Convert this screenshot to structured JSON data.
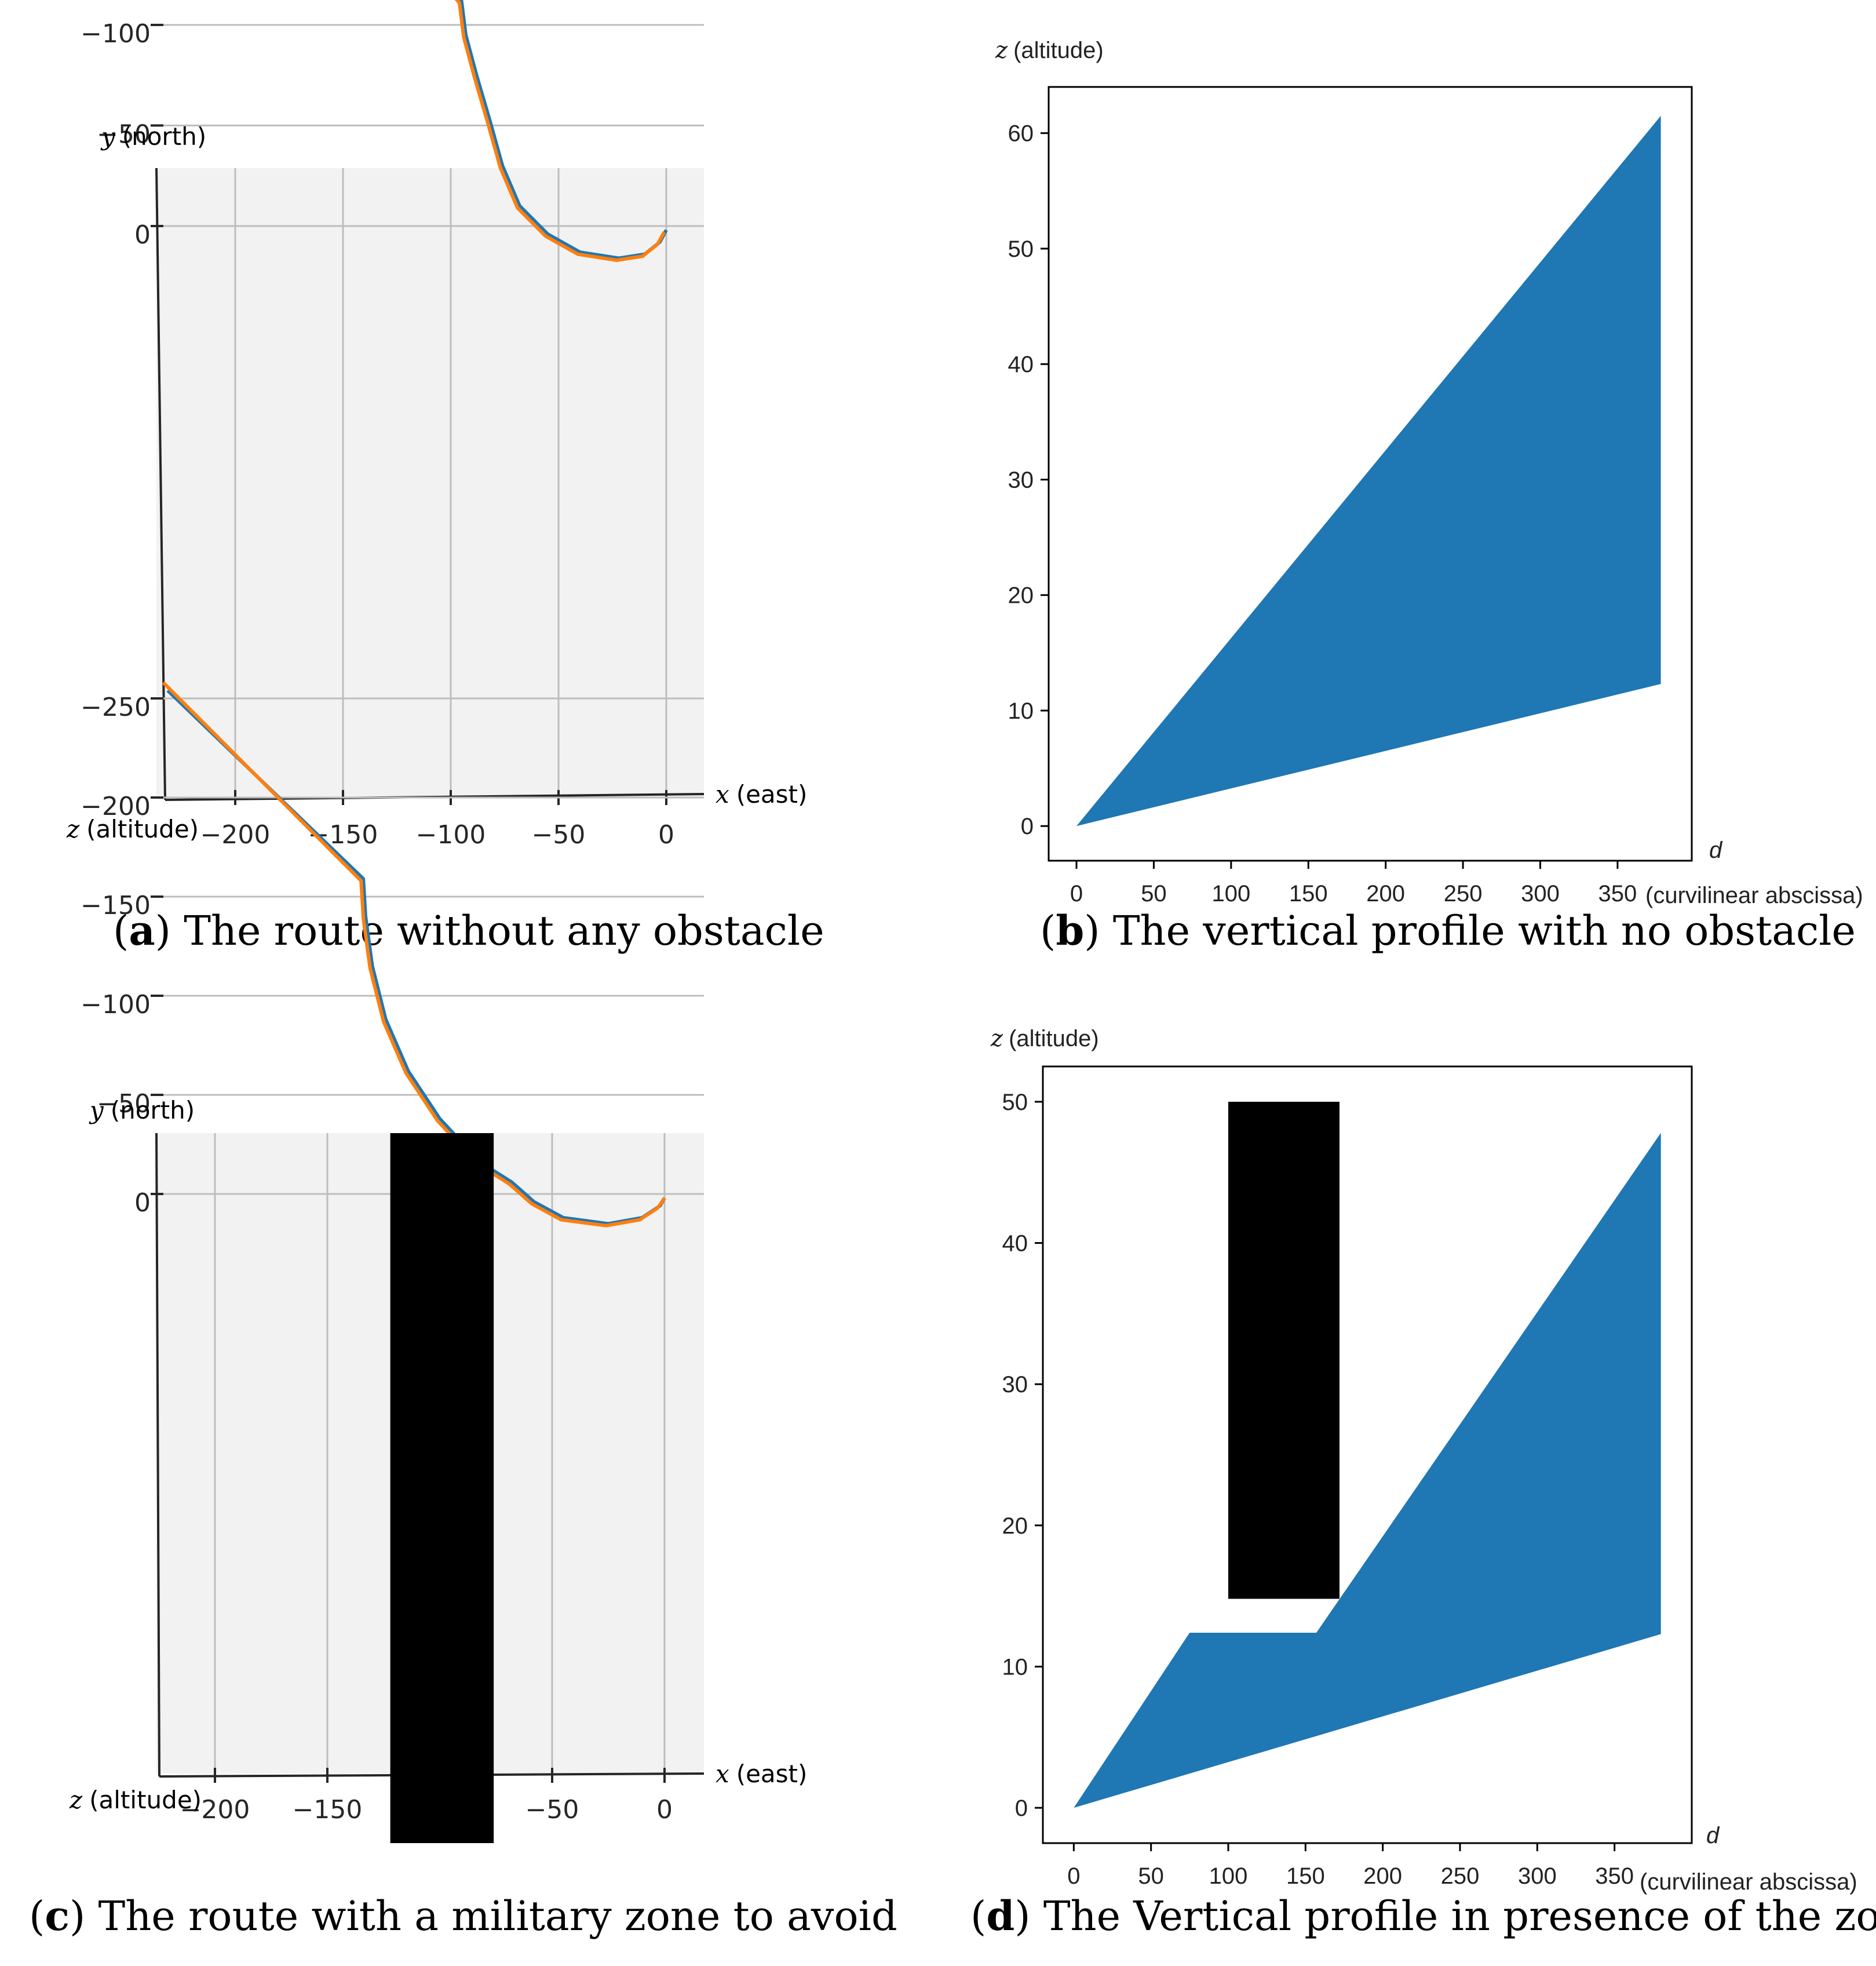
{
  "chart_data": [
    {
      "id": "a",
      "type": "line",
      "caption_letter": "a",
      "caption_text": "The route without any obstacle",
      "xlabel_var": "x",
      "xlabel_text": "(east)",
      "ylabel_var": "y",
      "ylabel_text": "(north)",
      "zlabel_var": "z",
      "zlabel_text": "(altitude)",
      "xticks": [
        "−200",
        "−150",
        "−100",
        "−50",
        "0"
      ],
      "yticks": [
        "0",
        "−50",
        "−100",
        "−150",
        "−200",
        "−250"
      ],
      "series": [
        {
          "name": "route-blue",
          "color": "#1f77b4",
          "points": [
            [
              -222,
              -263
            ],
            [
              -95,
              -112
            ],
            [
              -93,
              -95
            ],
            [
              -88,
              -75
            ],
            [
              -82,
              -53
            ],
            [
              -76,
              -30
            ],
            [
              -68,
              -10
            ],
            [
              -55,
              4
            ],
            [
              -40,
              13
            ],
            [
              -22,
              16
            ],
            [
              -10,
              14
            ],
            [
              -3,
              8
            ],
            [
              0,
              2
            ]
          ]
        },
        {
          "name": "route-orange",
          "color": "#ff7f0e",
          "points": [
            [
              -225,
              -266
            ],
            [
              -96,
              -111
            ],
            [
              -94,
              -94
            ],
            [
              -89,
              -74
            ],
            [
              -83,
              -52
            ],
            [
              -77,
              -29
            ],
            [
              -69,
              -9
            ],
            [
              -56,
              5
            ],
            [
              -41,
              14
            ],
            [
              -23,
              17
            ],
            [
              -11,
              15
            ],
            [
              -4,
              9
            ],
            [
              -1,
              3
            ]
          ]
        }
      ]
    },
    {
      "id": "b",
      "type": "area",
      "caption_letter": "b",
      "caption_text": "The vertical profile with no obstacle",
      "ylabel_var": "z",
      "ylabel_text": "(altitude)",
      "xlabel_var": "d",
      "xlabel_text": "(curvilinear abscissa)",
      "xticks": [
        0,
        50,
        100,
        150,
        200,
        250,
        300,
        350
      ],
      "yticks": [
        0,
        10,
        20,
        30,
        40,
        50,
        60
      ],
      "xlim": [
        -18,
        398
      ],
      "ylim": [
        -3,
        64
      ],
      "color": "#1f77b4",
      "polygon": [
        [
          0,
          0
        ],
        [
          378,
          61.5
        ],
        [
          378,
          12.3
        ],
        [
          0,
          0
        ]
      ]
    },
    {
      "id": "c",
      "type": "line",
      "caption_letter": "c",
      "caption_text": "The route with a military zone to avoid",
      "xlabel_var": "x",
      "xlabel_text": "(east)",
      "ylabel_var": "y",
      "ylabel_text": "(north)",
      "zlabel_var": "z",
      "zlabel_text": "(altitude)",
      "xticks": [
        "−200",
        "−150",
        "−100",
        "−50",
        "0"
      ],
      "yticks": [
        "0",
        "−50",
        "−100",
        "−150",
        "−200",
        "−250"
      ],
      "zone": {
        "x_from": -122,
        "x_to": -76,
        "color": "#000000"
      },
      "series": [
        {
          "name": "route-blue",
          "color": "#1f77b4",
          "points": [
            [
              -221,
              -254
            ],
            [
              -134,
              -159
            ],
            [
              -133,
              -140
            ],
            [
              -130,
              -115
            ],
            [
              -124,
              -88
            ],
            [
              -114,
              -62
            ],
            [
              -100,
              -38
            ],
            [
              -82,
              -16
            ],
            [
              -68,
              -6
            ],
            [
              -58,
              4
            ],
            [
              -45,
              12
            ],
            [
              -25,
              15
            ],
            [
              -10,
              12
            ],
            [
              -2,
              6
            ],
            [
              0,
              2
            ]
          ]
        },
        {
          "name": "route-orange",
          "color": "#ff7f0e",
          "points": [
            [
              -223,
              -258
            ],
            [
              -135,
              -158
            ],
            [
              -134,
              -139
            ],
            [
              -131,
              -114
            ],
            [
              -125,
              -87
            ],
            [
              -115,
              -61
            ],
            [
              -101,
              -37
            ],
            [
              -83,
              -15
            ],
            [
              -69,
              -5
            ],
            [
              -59,
              5
            ],
            [
              -46,
              13
            ],
            [
              -26,
              16
            ],
            [
              -11,
              13
            ],
            [
              -3,
              7
            ],
            [
              0,
              2
            ]
          ]
        }
      ]
    },
    {
      "id": "d",
      "type": "area",
      "caption_letter": "d",
      "caption_text": "The Vertical profile in presence of the zone",
      "ylabel_var": "z",
      "ylabel_text": "(altitude)",
      "xlabel_var": "d",
      "xlabel_text": "(curvilinear abscissa)",
      "xticks": [
        0,
        50,
        100,
        150,
        200,
        250,
        300,
        350
      ],
      "yticks": [
        0,
        10,
        20,
        30,
        40,
        50
      ],
      "xlim": [
        -20,
        400
      ],
      "ylim": [
        -2.5,
        52.5
      ],
      "color": "#1f77b4",
      "polygon": [
        [
          0,
          0
        ],
        [
          75,
          12.4
        ],
        [
          157,
          12.4
        ],
        [
          380,
          47.8
        ],
        [
          380,
          12.3
        ],
        [
          0,
          0
        ]
      ],
      "zone": {
        "d_from": 100,
        "d_to": 172,
        "z_from": 14.8,
        "z_to": 50,
        "color": "#000000"
      }
    }
  ]
}
